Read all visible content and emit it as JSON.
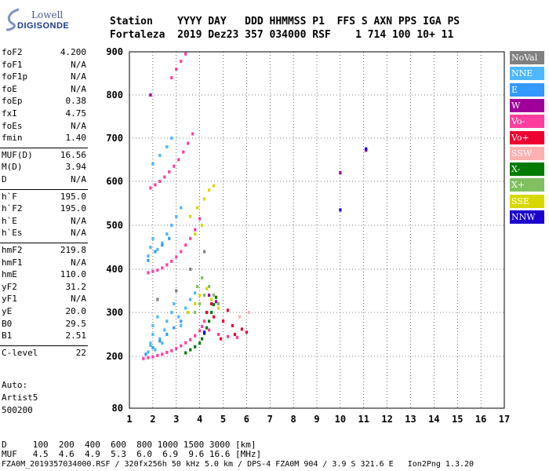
{
  "logo": {
    "line1": "Lowell",
    "line2": "DIGISONDE"
  },
  "header": {
    "line1": "Station    YYYY DAY   DDD HHMMSS P1  FFS S AXN PPS IGA PS",
    "line2": "Fortaleza  2019 Dez23 357 034000 RSF    1 714 100 10+ 11"
  },
  "params_group1": [
    {
      "key": "foF2",
      "value": "4.200"
    },
    {
      "key": "foF1",
      "value": "N/A"
    },
    {
      "key": "foF1p",
      "value": "N/A"
    },
    {
      "key": "foE",
      "value": "N/A"
    },
    {
      "key": "foEp",
      "value": "0.38"
    },
    {
      "key": "fxI",
      "value": "4.75"
    },
    {
      "key": "foEs",
      "value": "N/A"
    },
    {
      "key": "fmin",
      "value": "1.40"
    }
  ],
  "params_group2": [
    {
      "key": "MUF(D)",
      "value": "16.56"
    },
    {
      "key": "M(D)",
      "value": "3.94"
    },
    {
      "key": "D",
      "value": "N/A"
    }
  ],
  "params_group3": [
    {
      "key": "h`F",
      "value": "195.0"
    },
    {
      "key": "h`F2",
      "value": "195.0"
    },
    {
      "key": "h`E",
      "value": "N/A"
    },
    {
      "key": "h`Es",
      "value": "N/A"
    }
  ],
  "params_group4": [
    {
      "key": "hmF2",
      "value": "219.8"
    },
    {
      "key": "hmF1",
      "value": "N/A"
    },
    {
      "key": "hmE",
      "value": "110.0"
    },
    {
      "key": "yF2",
      "value": "31.2"
    },
    {
      "key": "yF1",
      "value": "N/A"
    },
    {
      "key": "yE",
      "value": "20.0"
    },
    {
      "key": "B0",
      "value": "29.5"
    },
    {
      "key": "B1",
      "value": "2.51"
    }
  ],
  "params_group5": [
    {
      "key": "C-level",
      "value": "22"
    }
  ],
  "notes": {
    "auto": "Auto:",
    "artist": "Artist5",
    "version": "500200"
  },
  "legend": [
    {
      "label": "NoVal",
      "color": "#808080"
    },
    {
      "label": "NNE",
      "color": "#4db8ff"
    },
    {
      "label": "E",
      "color": "#3399ff"
    },
    {
      "label": "W",
      "color": "#a0009a"
    },
    {
      "label": "Vo-",
      "color": "#ff3f9f"
    },
    {
      "label": "Vo+",
      "color": "#ee0030"
    },
    {
      "label": "SSW",
      "color": "#ffb0b0"
    },
    {
      "label": "X-",
      "color": "#007a00"
    },
    {
      "label": "X+",
      "color": "#80c060"
    },
    {
      "label": "SSE",
      "color": "#d8d800"
    },
    {
      "label": "NNW",
      "color": "#1a00cc"
    }
  ],
  "footer": {
    "line1": "D     100  200  400  600  800 1000 1500 3000 [km]",
    "line2": "MUF   4.5  4.6  4.9  5.3  6.0  6.9  9.6 16.6 [MHz]",
    "line3": "FZA0M_2019357034000.RSF / 320fx256h 50 kHz 5.0 km / DPS-4 FZA0M 904 / 3.9 S 321.6 E   Ion2Png 1.3.20"
  },
  "chart_data": {
    "type": "scatter",
    "xlim": [
      1,
      17
    ],
    "ylim": [
      80,
      900
    ],
    "x_ticks": [
      1,
      2,
      3,
      4,
      5,
      6,
      7,
      8,
      9,
      10,
      11,
      12,
      13,
      14,
      15,
      16,
      17
    ],
    "y_ticks": [
      80,
      200,
      300,
      400,
      500,
      600,
      700,
      800,
      900
    ],
    "grid": true,
    "series": [
      {
        "name": "Vo-",
        "color": "#ff3f9f",
        "points": [
          [
            1.6,
            195
          ],
          [
            1.8,
            197
          ],
          [
            2.0,
            199
          ],
          [
            2.2,
            202
          ],
          [
            2.4,
            205
          ],
          [
            2.6,
            209
          ],
          [
            2.8,
            213
          ],
          [
            3.0,
            218
          ],
          [
            3.2,
            224
          ],
          [
            3.4,
            231
          ],
          [
            3.6,
            238
          ],
          [
            3.8,
            247
          ],
          [
            4.0,
            258
          ],
          [
            4.1,
            268
          ],
          [
            4.2,
            280
          ],
          [
            1.8,
            392
          ],
          [
            2.0,
            395
          ],
          [
            2.2,
            398
          ],
          [
            2.4,
            403
          ],
          [
            2.6,
            410
          ],
          [
            2.8,
            418
          ],
          [
            3.0,
            428
          ],
          [
            3.2,
            440
          ],
          [
            3.4,
            455
          ],
          [
            3.6,
            470
          ],
          [
            3.8,
            490
          ],
          [
            4.0,
            515
          ],
          [
            1.9,
            585
          ],
          [
            2.1,
            592
          ],
          [
            2.3,
            600
          ],
          [
            2.5,
            610
          ],
          [
            2.7,
            622
          ],
          [
            2.9,
            635
          ],
          [
            3.1,
            650
          ],
          [
            3.3,
            668
          ],
          [
            3.5,
            688
          ],
          [
            3.7,
            710
          ],
          [
            2.8,
            840
          ],
          [
            3.0,
            860
          ],
          [
            3.2,
            878
          ],
          [
            3.4,
            895
          ],
          [
            4.4,
            260
          ],
          [
            4.8,
            250
          ],
          [
            5.2,
            245
          ],
          [
            5.6,
            243
          ]
        ]
      },
      {
        "name": "Vo+",
        "color": "#ee0030",
        "points": [
          [
            4.3,
            300
          ],
          [
            4.6,
            290
          ],
          [
            5.0,
            280
          ],
          [
            5.4,
            270
          ],
          [
            5.8,
            262
          ],
          [
            6.0,
            255
          ],
          [
            4.5,
            320
          ],
          [
            5.2,
            305
          ],
          [
            5.5,
            250
          ],
          [
            4.9,
            240
          ]
        ]
      },
      {
        "name": "NNE",
        "color": "#4db8ff",
        "points": [
          [
            1.8,
            210
          ],
          [
            1.9,
            230
          ],
          [
            2.0,
            250
          ],
          [
            2.0,
            270
          ],
          [
            2.2,
            290
          ],
          [
            2.3,
            240
          ],
          [
            2.5,
            260
          ],
          [
            2.6,
            280
          ],
          [
            2.8,
            300
          ],
          [
            2.9,
            320
          ],
          [
            3.1,
            290
          ],
          [
            3.2,
            270
          ],
          [
            3.4,
            310
          ],
          [
            1.8,
            430
          ],
          [
            1.9,
            450
          ],
          [
            2.0,
            470
          ],
          [
            2.2,
            445
          ],
          [
            2.4,
            460
          ],
          [
            2.6,
            480
          ],
          [
            2.8,
            500
          ],
          [
            3.0,
            520
          ],
          [
            3.2,
            540
          ],
          [
            2.0,
            640
          ],
          [
            2.3,
            660
          ],
          [
            2.6,
            680
          ],
          [
            2.8,
            700
          ],
          [
            1.9,
            225
          ],
          [
            2.1,
            215
          ],
          [
            2.4,
            230
          ],
          [
            3.6,
            330
          ],
          [
            3.8,
            345
          ]
        ]
      },
      {
        "name": "E",
        "color": "#3399ff",
        "points": [
          [
            1.7,
            205
          ],
          [
            2.0,
            220
          ],
          [
            2.3,
            235
          ],
          [
            2.6,
            250
          ],
          [
            2.9,
            265
          ],
          [
            3.2,
            280
          ],
          [
            3.5,
            300
          ],
          [
            1.8,
            420
          ],
          [
            2.1,
            440
          ],
          [
            2.4,
            455
          ],
          [
            2.7,
            470
          ]
        ]
      },
      {
        "name": "X-",
        "color": "#007a00",
        "points": [
          [
            3.6,
            215
          ],
          [
            3.8,
            222
          ],
          [
            4.0,
            230
          ],
          [
            4.1,
            240
          ],
          [
            4.2,
            252
          ],
          [
            4.3,
            265
          ],
          [
            4.4,
            280
          ],
          [
            4.5,
            300
          ],
          [
            4.6,
            318
          ],
          [
            4.7,
            335
          ],
          [
            3.4,
            208
          ]
        ]
      },
      {
        "name": "X+",
        "color": "#80c060",
        "points": [
          [
            3.8,
            300
          ],
          [
            4.0,
            320
          ],
          [
            4.2,
            340
          ],
          [
            4.4,
            360
          ],
          [
            4.6,
            340
          ],
          [
            4.8,
            320
          ],
          [
            3.9,
            360
          ],
          [
            4.1,
            380
          ]
        ]
      },
      {
        "name": "SSE",
        "color": "#d8d800",
        "points": [
          [
            3.5,
            300
          ],
          [
            3.8,
            320
          ],
          [
            4.0,
            340
          ],
          [
            4.3,
            355
          ],
          [
            4.5,
            330
          ],
          [
            4.8,
            310
          ],
          [
            3.6,
            520
          ],
          [
            3.9,
            540
          ],
          [
            4.2,
            560
          ],
          [
            4.4,
            580
          ],
          [
            4.6,
            590
          ],
          [
            3.8,
            480
          ],
          [
            4.1,
            500
          ]
        ]
      },
      {
        "name": "W",
        "color": "#a0009a",
        "points": [
          [
            1.9,
            800
          ],
          [
            4.4,
            340
          ],
          [
            4.7,
            325
          ],
          [
            10.0,
            620
          ],
          [
            11.1,
            672
          ]
        ]
      },
      {
        "name": "NNW",
        "color": "#1a00cc",
        "points": [
          [
            10.0,
            535
          ],
          [
            11.1,
            675
          ],
          [
            4.2,
            255
          ]
        ]
      },
      {
        "name": "SSW",
        "color": "#ffb0b0",
        "points": [
          [
            6.1,
            300
          ],
          [
            5.7,
            290
          ]
        ]
      },
      {
        "name": "NoVal",
        "color": "#808080",
        "points": [
          [
            2.2,
            330
          ],
          [
            3.0,
            350
          ],
          [
            3.6,
            400
          ],
          [
            4.2,
            440
          ]
        ]
      }
    ]
  }
}
